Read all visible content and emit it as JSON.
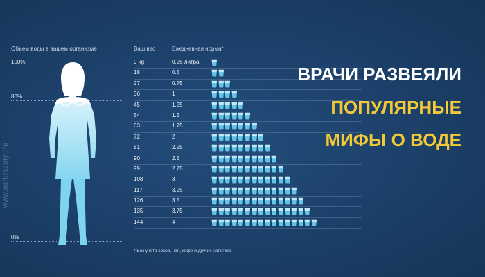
{
  "left_panel": {
    "title": "Объем воды в вашем организме",
    "levels": {
      "p100": "100%",
      "p80": "80%",
      "p0": "0%"
    }
  },
  "table": {
    "weight_header": "Ваш вес",
    "norm_header": "Ежедневная норма*",
    "rows": [
      {
        "weight": "9 kg",
        "norm": "0.25 литра",
        "cups": 1
      },
      {
        "weight": "18",
        "norm": "0.5",
        "cups": 2
      },
      {
        "weight": "27",
        "norm": "0.75",
        "cups": 3
      },
      {
        "weight": "36",
        "norm": "1",
        "cups": 4
      },
      {
        "weight": "45",
        "norm": "1.25",
        "cups": 5
      },
      {
        "weight": "54",
        "norm": "1.5",
        "cups": 6
      },
      {
        "weight": "63",
        "norm": "1.75",
        "cups": 7
      },
      {
        "weight": "72",
        "norm": "2",
        "cups": 8
      },
      {
        "weight": "81",
        "norm": "2.25",
        "cups": 9
      },
      {
        "weight": "90",
        "norm": "2.5",
        "cups": 10
      },
      {
        "weight": "99",
        "norm": "2.75",
        "cups": 11
      },
      {
        "weight": "108",
        "norm": "3",
        "cups": 12
      },
      {
        "weight": "117",
        "norm": "3.25",
        "cups": 13
      },
      {
        "weight": "126",
        "norm": "3.5",
        "cups": 14
      },
      {
        "weight": "135",
        "norm": "3.75",
        "cups": 15
      },
      {
        "weight": "144",
        "norm": "4",
        "cups": 16
      }
    ],
    "footnote": "* Без учета соков, чая, кофе и других напитков"
  },
  "headline": {
    "line1": "ВРАЧИ РАЗВЕЯЛИ",
    "line2": "ПОПУЛЯРНЫЕ",
    "line3": "МИФЫ О ВОДЕ"
  },
  "watermark": "www.mirkrasoty.life",
  "colors": {
    "background": "#1c416b",
    "water_light": "#bfe9f7",
    "water_dark": "#5cc5e8",
    "headline_white": "#ffffff",
    "headline_yellow": "#f3c936"
  },
  "icons": {
    "cup": "water-glass-icon",
    "figure": "woman-silhouette-icon"
  },
  "water_level_fraction": 0.8
}
